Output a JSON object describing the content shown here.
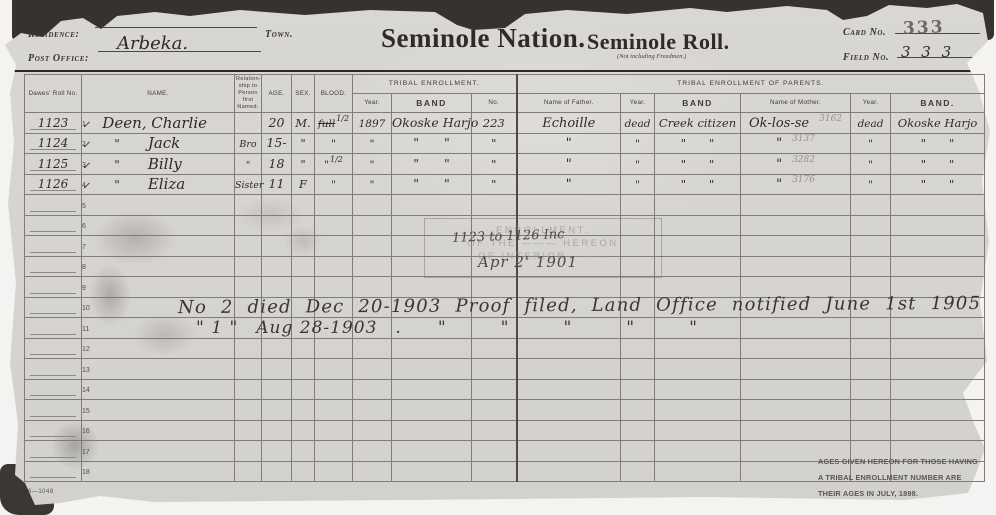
{
  "header": {
    "residence_label": "Residence:",
    "town_label": "Town.",
    "post_office_label": "Post Office:",
    "post_office_value": "Arbeka.",
    "title": "Seminole Nation.",
    "subtitle": "Seminole Roll.",
    "subtitle_note": "(Not including Freedmen.)",
    "card_no_label": "Card No.",
    "card_no_value": "333",
    "field_no_label": "Field No.",
    "field_no_value": "3 3 3"
  },
  "table": {
    "headers": {
      "dawes": "Dawes' Roll No.",
      "name": "NAME.",
      "rel": "Relation-ship to Person first Named.",
      "age": "AGE.",
      "sex": "SEX.",
      "blood": "BLOOD.",
      "tribal": "TRIBAL ENROLLMENT.",
      "year": "Year.",
      "band": "BAND",
      "no": "No.",
      "parents": "TRIBAL ENROLLMENT OF PARENTS.",
      "father": "Name of Father.",
      "mother": "Name of Mother.",
      "band2": "BAND."
    },
    "rows": [
      {
        "n": "1",
        "chk": true,
        "dawes": "1123",
        "name": "Deen, Charlie",
        "rel": "",
        "age": "20",
        "sex": "M.",
        "blood": {
          "struck": "full",
          "sup": "1/2"
        },
        "tey": "1897",
        "teb": "Okoske Harjo",
        "ten": "223",
        "fa": "Echoille",
        "fay": "dead",
        "fab": "Creek citizen",
        "mo": {
          "t": "Ok-los-se",
          "p": "3162"
        },
        "moy": "dead",
        "mob": "Okoske Harjo"
      },
      {
        "n": "2",
        "chk": true,
        "dawes": "1124",
        "nd": "\"",
        "name": "Jack",
        "rel": "Bro",
        "age": "15-",
        "sex": "\"",
        "blood": "\"",
        "tey": "\"",
        "teb": "\"  \"",
        "ten": "\"",
        "fa": "\"",
        "fay": "\"",
        "fab": "\"  \"",
        "mo": {
          "t": "\"",
          "p": "3137"
        },
        "moy": "\"",
        "mob": "\"  \""
      },
      {
        "n": "3",
        "chk": true,
        "dawes": "1125",
        "nd": "\"",
        "name": "Billy",
        "rel": "\"",
        "age": "18",
        "sex": "\"",
        "blood": {
          "t": "\"",
          "sup": "1/2"
        },
        "tey": "\"",
        "teb": "\"  \"",
        "ten": "\"",
        "fa": "\"",
        "fay": "\"",
        "fab": "\"  \"",
        "mo": {
          "t": "\"",
          "p": "3282"
        },
        "moy": "\"",
        "mob": "\"  \""
      },
      {
        "n": "4",
        "chk": true,
        "dawes": "1126",
        "nd": "\"",
        "name": "Eliza",
        "rel": "Sister",
        "age": "11",
        "sex": "F",
        "blood": "\"",
        "tey": "\"",
        "teb": "\"  \"",
        "ten": "\"",
        "fa": "\"",
        "fay": "\"",
        "fab": "\"  \"",
        "mo": {
          "t": "\"",
          "p": "3176"
        },
        "moy": "\"",
        "mob": "\"  \""
      },
      {
        "n": "5"
      },
      {
        "n": "6"
      },
      {
        "n": "7"
      },
      {
        "n": "8"
      },
      {
        "n": "9"
      },
      {
        "n": "10"
      },
      {
        "n": "11"
      },
      {
        "n": "12"
      },
      {
        "n": "13"
      },
      {
        "n": "14"
      },
      {
        "n": "15"
      },
      {
        "n": "16"
      },
      {
        "n": "17"
      },
      {
        "n": "18"
      }
    ]
  },
  "stamp": {
    "lines": [
      "ENROLLMENT.",
      "OF THE ——— HEREON",
      "OF INTERIOR ———"
    ],
    "hw_range": "1123 to 1126 Inc",
    "hw_date": "Apr 2' 1901"
  },
  "notes": {
    "line1": "No 2 died Dec 20-1903 Proof filed, Land Office notified June 1st 1905",
    "line2": "\" 1 \" Aug 28-1903 .  \"   \"   \"   \"   \""
  },
  "footer": {
    "form_number": "6—1048",
    "ages_stamp": [
      "AGES GIVEN HEREON FOR THOSE HAVING",
      "A TRIBAL ENROLLMENT NUMBER ARE",
      "THEIR AGES IN JULY, 1898."
    ]
  }
}
